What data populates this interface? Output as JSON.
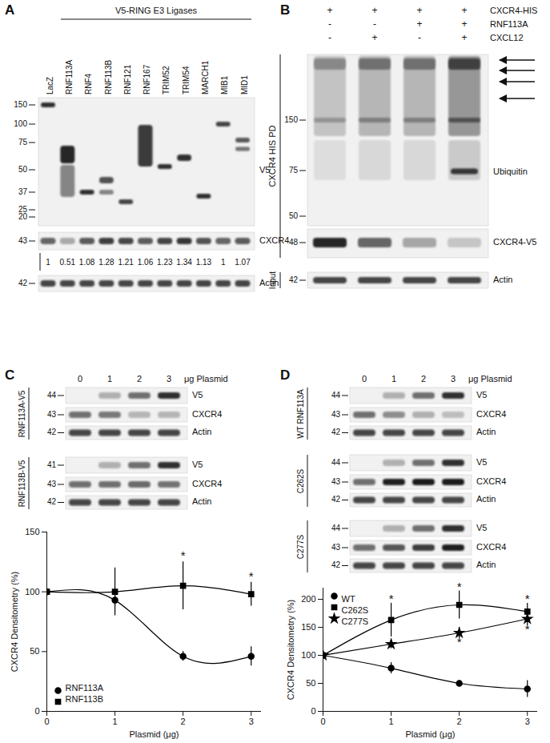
{
  "panels": [
    {
      "label": "A",
      "header": "V5-RING E3 Ligases",
      "lanes": [
        "LacZ",
        "RNF113A",
        "RNF4",
        "RNF113B",
        "RNF121",
        "RNF167",
        "TRIM52",
        "TRIM54",
        "MARCH1",
        "MIB1",
        "MID1"
      ],
      "blots": [
        {
          "name": "V5",
          "markers": [
            150,
            100,
            75,
            50,
            37,
            25,
            20
          ]
        },
        {
          "name": "CXCR4",
          "markers": [
            43
          ]
        },
        {
          "name": "Actin",
          "markers": [
            42
          ]
        }
      ],
      "densitometry": [
        1,
        0.51,
        1.08,
        1.28,
        1.21,
        1.06,
        1.23,
        1.34,
        1.13,
        1,
        1.07
      ]
    },
    {
      "label": "B",
      "conditions": [
        {
          "name": "CXCR4-HIS",
          "signs": [
            "+",
            "+",
            "+",
            "+"
          ]
        },
        {
          "name": "RNF113A",
          "signs": [
            "-",
            "-",
            "+",
            "+"
          ]
        },
        {
          "name": "CXCL12",
          "signs": [
            "-",
            "+",
            "-",
            "+"
          ]
        }
      ],
      "groups": [
        "CXCR4 HIS PD",
        "Input"
      ],
      "blots": [
        {
          "name": "Ubiquitin",
          "markers": [
            150,
            75,
            50
          ]
        },
        {
          "name": "CXCR4-V5",
          "markers": [
            48
          ]
        },
        {
          "name": "Actin",
          "markers": [
            42
          ]
        }
      ]
    },
    {
      "label": "C",
      "doses": [
        0,
        1,
        2,
        3
      ],
      "dose_label": "μg Plasmid",
      "groups": [
        {
          "name": "RNF113A-V5",
          "blots": [
            {
              "name": "V5",
              "marker": 44
            },
            {
              "name": "CXCR4",
              "marker": 43
            },
            {
              "name": "Actin",
              "marker": 42
            }
          ]
        },
        {
          "name": "RNF113B-V5",
          "blots": [
            {
              "name": "V5",
              "marker": 41
            },
            {
              "name": "CXCR4",
              "marker": 43
            },
            {
              "name": "Actin",
              "marker": 42
            }
          ]
        }
      ]
    },
    {
      "label": "D",
      "doses": [
        0,
        1,
        2,
        3
      ],
      "dose_label": "μg Plasmid",
      "groups": [
        {
          "name": "WT RNF113A",
          "blots": [
            {
              "name": "V5",
              "marker": 44
            },
            {
              "name": "CXCR4",
              "marker": 43
            },
            {
              "name": "Actin",
              "marker": 42
            }
          ]
        },
        {
          "name": "C262S",
          "blots": [
            {
              "name": "V5",
              "marker": 44
            },
            {
              "name": "CXCR4",
              "marker": 43
            },
            {
              "name": "Actin",
              "marker": 42
            }
          ]
        },
        {
          "name": "C277S",
          "blots": [
            {
              "name": "V5",
              "marker": 44
            },
            {
              "name": "CXCR4",
              "marker": 43
            },
            {
              "name": "Actin",
              "marker": 42
            }
          ]
        }
      ]
    }
  ],
  "chart_data": [
    {
      "type": "line",
      "x_label": "Plasmid (μg)",
      "y_label": "CXCR4 Densitometry (%)",
      "x": [
        0,
        1,
        2,
        3
      ],
      "xlim": [
        0,
        3.15
      ],
      "xticks": [
        0,
        1,
        2,
        3
      ],
      "ylim": [
        0,
        150
      ],
      "yticks": [
        0,
        50,
        100,
        150
      ],
      "legend": "bottom-left",
      "series": [
        {
          "name": "RNF113A",
          "marker": "circle",
          "color": "#000000",
          "values": [
            100,
            93,
            46,
            46
          ],
          "errors": [
            0,
            5,
            4,
            8
          ]
        },
        {
          "name": "RNF113B",
          "marker": "square",
          "color": "#000000",
          "values": [
            100,
            100,
            105,
            98
          ],
          "errors": [
            0,
            20,
            20,
            10
          ]
        }
      ],
      "annotations": [
        {
          "text": "*",
          "x": 2,
          "y": 130
        },
        {
          "text": "*",
          "x": 3,
          "y": 113
        }
      ]
    },
    {
      "type": "line",
      "x_label": "Plasmid (μg)",
      "y_label": "CXCR4 Densitometry (%)",
      "x": [
        0,
        1,
        2,
        3
      ],
      "xlim": [
        0,
        3.15
      ],
      "xticks": [
        0,
        1,
        2,
        3
      ],
      "ylim": [
        0,
        220
      ],
      "yticks": [
        0,
        50,
        100,
        150,
        200
      ],
      "legend": "top-left",
      "series": [
        {
          "name": "WT",
          "marker": "circle",
          "color": "#000000",
          "values": [
            100,
            77,
            50,
            40
          ],
          "errors": [
            0,
            10,
            5,
            15
          ]
        },
        {
          "name": "C262S",
          "marker": "square",
          "color": "#000000",
          "values": [
            100,
            163,
            190,
            178
          ],
          "errors": [
            0,
            30,
            25,
            15
          ]
        },
        {
          "name": "C277S",
          "marker": "star",
          "color": "#000000",
          "values": [
            100,
            120,
            140,
            165
          ],
          "errors": [
            0,
            8,
            10,
            12
          ]
        }
      ],
      "annotations": [
        {
          "text": "*",
          "x": 1,
          "y": 200
        },
        {
          "text": "*",
          "x": 2,
          "y": 222
        },
        {
          "text": "*",
          "x": 2,
          "y": 124
        },
        {
          "text": "*",
          "x": 3,
          "y": 200
        },
        {
          "text": "*",
          "x": 3,
          "y": 146
        }
      ]
    }
  ]
}
